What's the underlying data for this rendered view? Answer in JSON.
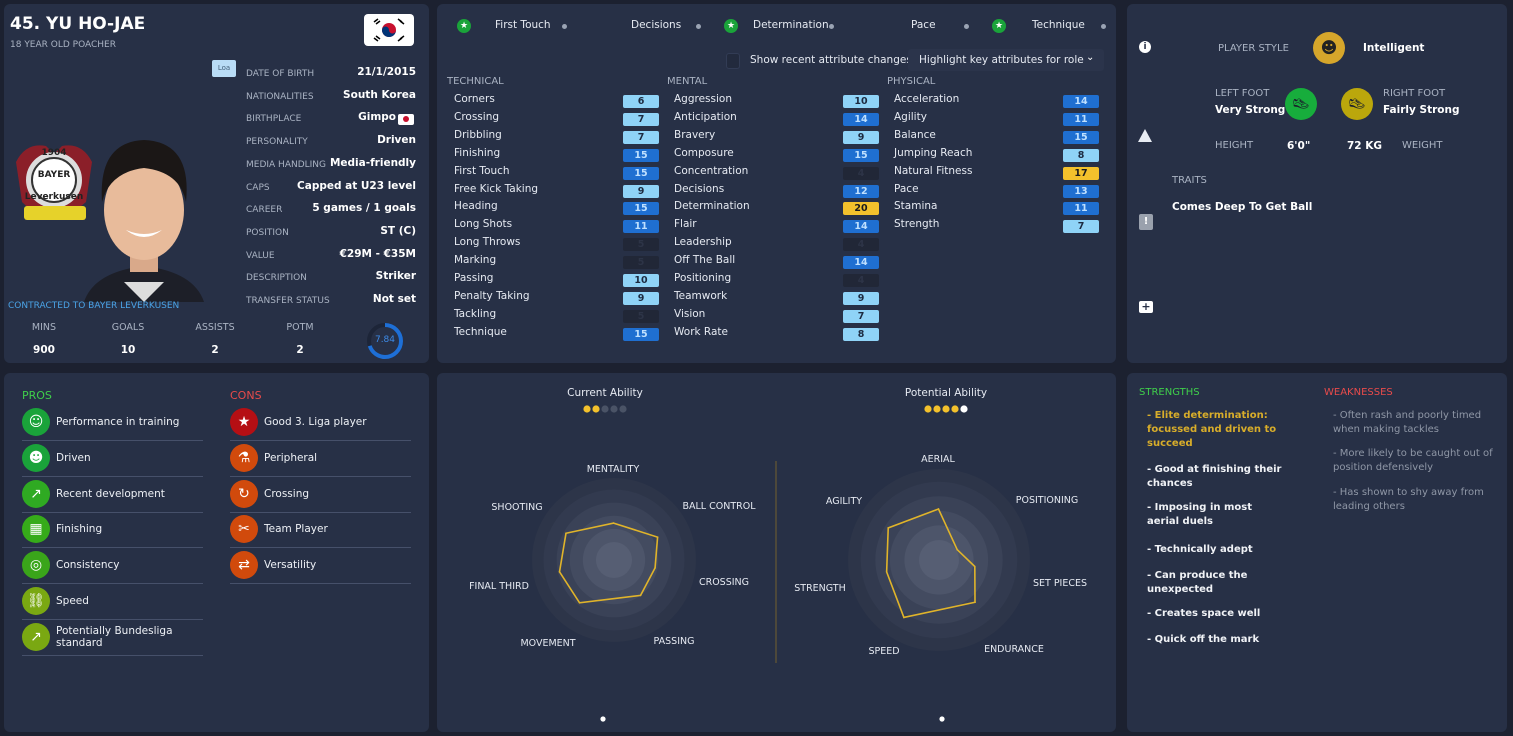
{
  "player": {
    "title": "45. YU HO-JAE",
    "subtitle": "18 YEAR OLD POACHER",
    "loan_tag": "Loa",
    "contract": "CONTRACTED TO BAYER LEVERKUSEN",
    "club_badge_text": "1904 BAYER Leverkusen",
    "info": [
      {
        "label": "DATE OF BIRTH",
        "value": "21/1/2015"
      },
      {
        "label": "NATIONALITIES",
        "value": "South Korea"
      },
      {
        "label": "BIRTHPLACE",
        "value": "Gimpo"
      },
      {
        "label": "PERSONALITY",
        "value": "Driven"
      },
      {
        "label": "MEDIA HANDLING",
        "value": "Media-friendly"
      },
      {
        "label": "CAPS",
        "value": "Capped at U23 level"
      },
      {
        "label": "CAREER",
        "value": "5  games /     1  goals"
      },
      {
        "label": "POSITION",
        "value": "ST (C)"
      },
      {
        "label": "VALUE",
        "value": "€29M - €35M"
      },
      {
        "label": "DESCRIPTION",
        "value": "Striker"
      },
      {
        "label": "TRANSFER STATUS",
        "value": "Not set"
      }
    ],
    "stats": [
      {
        "label": "MINS",
        "value": "900"
      },
      {
        "label": "GOALS",
        "value": "10"
      },
      {
        "label": "ASSISTS",
        "value": "2"
      },
      {
        "label": "POTM",
        "value": "2"
      }
    ],
    "rating": "7.84",
    "rating_fraction": 0.7
  },
  "attributes": {
    "key_row": [
      {
        "label": "First Touch",
        "starred": true
      },
      {
        "label": "Decisions",
        "starred": false
      },
      {
        "label": "Determination",
        "starred": true
      },
      {
        "label": "Pace",
        "starred": false
      },
      {
        "label": "Technique",
        "starred": true
      }
    ],
    "show_changes_label": "Show recent attribute changes",
    "highlight_dropdown": "Highlight key attributes for role",
    "columns": [
      {
        "heading": "TECHNICAL",
        "items": [
          [
            "Corners",
            6
          ],
          [
            "Crossing",
            7
          ],
          [
            "Dribbling",
            7
          ],
          [
            "Finishing",
            15
          ],
          [
            "First Touch",
            15
          ],
          [
            "Free Kick Taking",
            9
          ],
          [
            "Heading",
            15
          ],
          [
            "Long Shots",
            11
          ],
          [
            "Long Throws",
            5
          ],
          [
            "Marking",
            5
          ],
          [
            "Passing",
            10
          ],
          [
            "Penalty Taking",
            9
          ],
          [
            "Tackling",
            5
          ],
          [
            "Technique",
            15
          ]
        ]
      },
      {
        "heading": "MENTAL",
        "items": [
          [
            "Aggression",
            10
          ],
          [
            "Anticipation",
            14
          ],
          [
            "Bravery",
            9
          ],
          [
            "Composure",
            15
          ],
          [
            "Concentration",
            4
          ],
          [
            "Decisions",
            12
          ],
          [
            "Determination",
            20
          ],
          [
            "Flair",
            14
          ],
          [
            "Leadership",
            4
          ],
          [
            "Off The Ball",
            14
          ],
          [
            "Positioning",
            4
          ],
          [
            "Teamwork",
            9
          ],
          [
            "Vision",
            7
          ],
          [
            "Work Rate",
            8
          ]
        ]
      },
      {
        "heading": "PHYSICAL",
        "items": [
          [
            "Acceleration",
            14
          ],
          [
            "Agility",
            11
          ],
          [
            "Balance",
            15
          ],
          [
            "Jumping Reach",
            8
          ],
          [
            "Natural Fitness",
            17
          ],
          [
            "Pace",
            13
          ],
          [
            "Stamina",
            11
          ],
          [
            "Strength",
            7
          ]
        ]
      }
    ]
  },
  "profile": {
    "player_style_label": "PLAYER STYLE",
    "player_style": "Intelligent",
    "left_foot_label": "LEFT FOOT",
    "left_foot": "Very Strong",
    "right_foot_label": "RIGHT FOOT",
    "right_foot": "Fairly Strong",
    "height_label": "HEIGHT",
    "height": "6'0\"",
    "weight": "72 KG",
    "weight_label": "WEIGHT",
    "traits_label": "TRAITS",
    "traits": [
      "Comes Deep To Get Ball"
    ]
  },
  "pros_cons": {
    "pros_label": "PROS",
    "cons_label": "CONS",
    "pros": [
      {
        "label": "Performance in training",
        "icon": "training-cone-icon",
        "glyph": "☺",
        "color": "#1aa33a"
      },
      {
        "label": "Driven",
        "icon": "head-icon",
        "glyph": "☻",
        "color": "#1aa33a"
      },
      {
        "label": "Recent development",
        "icon": "development-icon",
        "glyph": "↗",
        "color": "#2faa22"
      },
      {
        "label": "Finishing",
        "icon": "goal-icon",
        "glyph": "▦",
        "color": "#36ab1a"
      },
      {
        "label": "Consistency",
        "icon": "target-icon",
        "glyph": "◎",
        "color": "#3aa51a"
      },
      {
        "label": "Speed",
        "icon": "chain-icon",
        "glyph": "⛓",
        "color": "#7aa812"
      },
      {
        "label": "Potentially Bundesliga standard",
        "icon": "trend-up-icon",
        "glyph": "↗",
        "color": "#7aa812"
      }
    ],
    "cons": [
      {
        "label": "Good 3. Liga player",
        "icon": "star-icon",
        "glyph": "★",
        "color": "#b50f14"
      },
      {
        "label": "Peripheral",
        "icon": "flask-icon",
        "glyph": "⚗",
        "color": "#d14a0c"
      },
      {
        "label": "Crossing",
        "icon": "cross-ball-icon",
        "glyph": "↻",
        "color": "#d14a0c"
      },
      {
        "label": "Team Player",
        "icon": "broken-link-icon",
        "glyph": "✂",
        "color": "#d14a0c"
      },
      {
        "label": "Versatility",
        "icon": "arrows-icon",
        "glyph": "⇄",
        "color": "#d14a0c"
      }
    ]
  },
  "chart_data": [
    {
      "type": "radar",
      "title": "Current Ability",
      "stars_filled": 2,
      "stars_total": 5,
      "axes": [
        "MENTALITY",
        "BALL CONTROL",
        "CROSSING",
        "PASSING",
        "MOVEMENT",
        "FINAL THIRD",
        "SHOOTING"
      ],
      "values": [
        0.45,
        0.6,
        0.51,
        0.54,
        0.67,
        0.68,
        0.67
      ],
      "range": [
        0,
        1
      ]
    },
    {
      "type": "radar",
      "title": "Potential Ability",
      "stars_filled": 4,
      "stars_total": 5,
      "axes": [
        "AERIAL",
        "POSITIONING",
        "SET PIECES",
        "ENDURANCE",
        "SPEED",
        "STRENGTH",
        "AGILITY"
      ],
      "values": [
        0.56,
        0.23,
        0.4,
        0.61,
        0.74,
        0.59,
        0.66
      ],
      "range": [
        0,
        1
      ]
    }
  ],
  "scouting": {
    "strengths_label": "STRENGTHS",
    "weaknesses_label": "WEAKNESSES",
    "strengths": [
      "- Elite determination: focussed and driven to succeed",
      "- Good at finishing their chances",
      "- Imposing in most aerial duels",
      "- Technically adept",
      "- Can produce the unexpected",
      "- Creates space well",
      "- Quick off the mark"
    ],
    "weaknesses": [
      "- Often rash and poorly timed when making tackles",
      "- More likely to be caught out of position defensively",
      "- Has shown to shy away from leading others"
    ]
  },
  "colors": {
    "accent_gold": "#e8b92a",
    "pros": "#3fcf4b",
    "cons": "#e84b4b"
  }
}
